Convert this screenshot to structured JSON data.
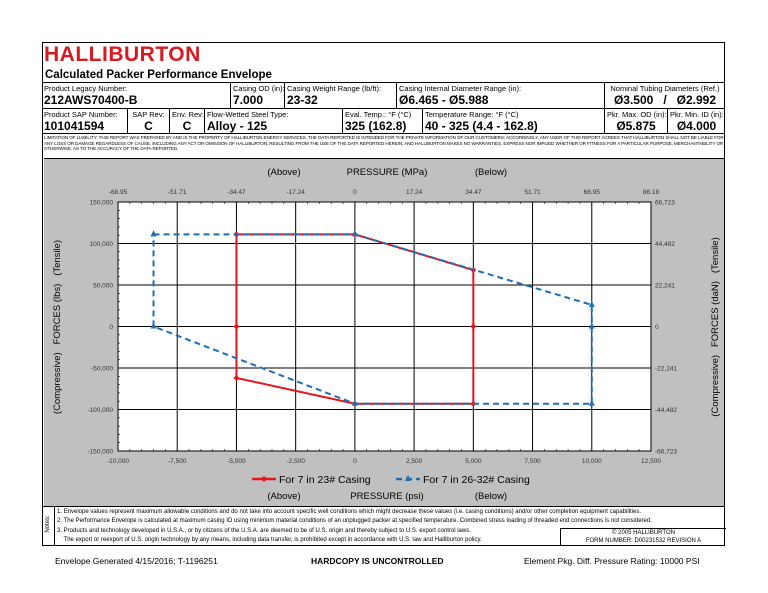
{
  "header": {
    "brand": "HALLIBURTON",
    "title": "Calculated Packer Performance Envelope"
  },
  "row1": {
    "legacy_label": "Product Legacy Number:",
    "legacy_value": "212AWS70400-B",
    "od_label": "Casing OD (in):",
    "od_value": "7.000",
    "weight_label": "Casing Weight Range (lb/ft):",
    "weight_value": "23-32",
    "id_label": "Casing Internal Diameter Range (in):",
    "id_value": "Ø6.465 - Ø5.988",
    "tubing_label": "Nominal Tubing Diameters (Ref.)",
    "tubing_value": "Ø3.500   /   Ø2.992"
  },
  "row2": {
    "sap_label": "Product SAP Number:",
    "sap_value": "101041594",
    "saprev_label": "SAP Rev:",
    "saprev_value": "C",
    "envrev_label": "Env. Rev:",
    "envrev_value": "C",
    "steel_label": "Flow-Wetted Steel Type:",
    "steel_value": "Alloy - 125",
    "eval_label": "Eval. Temp.: °F (°C)",
    "eval_value": "325 (162.8)",
    "temprange_label": "Temperature Range: °F (°C)",
    "temprange_value": "40 - 325 (4.4 - 162.8)",
    "maxod_label": "Pkr. Max. OD (in):",
    "maxod_value": "Ø5.875",
    "minid_label": "Pkr. Min. ID (in):",
    "minid_value": "Ø4.000"
  },
  "disclaimer": "Limitation of liability: this report was prepared by and is the property of Halliburton Energy Services. The data reported is intended for the private information of our customers; accordingly, any user of this report agrees that Halliburton shall not be liable for any loss or damage regardless of cause, including any act or omission of Halliburton, resulting from the use of the data reported herein; and Halliburton makes no warranties, express nor implied whether or fitness for a particular purpose, merchantability or otherwise, as to the accuracy of the data reported.",
  "chart_data": {
    "type": "line",
    "title_top": "PRESSURE (MPa)",
    "top_above": "(Above)",
    "top_below": "(Below)",
    "xlabel": "PRESSURE (psi)",
    "bottom_above": "(Above)",
    "bottom_below": "(Below)",
    "ylabel_left": "(Compressive)   FORCES (lbs)   (Tensile)",
    "ylabel_right": "(Compressive)   FORCES (daN)   (Tensile)",
    "xlim": [
      -10000,
      12500
    ],
    "ylim": [
      -150000,
      150000
    ],
    "x_ticks": [
      -10000,
      -7500,
      -5000,
      -2500,
      0,
      2500,
      5000,
      7500,
      10000,
      12500
    ],
    "x_tick_labels": [
      "-10,000",
      "-7,500",
      "-5,000",
      "-2,500",
      "0",
      "2,500",
      "5,000",
      "7,500",
      "10,000",
      "12,500"
    ],
    "x_top_tick_labels": [
      "-68.95",
      "-51.71",
      "-34.47",
      "-17.24",
      "0",
      "17.24",
      "34.47",
      "51.71",
      "68.95",
      "86.18"
    ],
    "y_ticks": [
      150000,
      100000,
      50000,
      0,
      -50000,
      -100000,
      -150000
    ],
    "y_tick_labels": [
      "150,000",
      "100,000",
      "50,000",
      "0",
      "-50,000",
      "-100,000",
      "-150,000"
    ],
    "y_right_tick_labels": [
      "66,723",
      "44,482",
      "22,241",
      "0",
      "-22,241",
      "-44,482",
      "-66,723"
    ],
    "grid": true,
    "legend_position": "bottom",
    "series": [
      {
        "name": "For 7 in 23# Casing",
        "color": "#e8141c",
        "style": "solid",
        "marker": "diamond",
        "x": [
          -5000,
          0,
          5000,
          5000,
          5000,
          0,
          -5000,
          -5000,
          -5000
        ],
        "y": [
          111000,
          111000,
          68000,
          0,
          -93000,
          -93000,
          -62000,
          0,
          111000
        ]
      },
      {
        "name": "For 7 in 26-32# Casing",
        "color": "#1f6fb4",
        "style": "dashed",
        "marker": "triangle",
        "x": [
          -8500,
          0,
          10000,
          10000,
          10000,
          0,
          -8500,
          -8500
        ],
        "y": [
          111000,
          111000,
          26000,
          0,
          -93000,
          -93000,
          0,
          111000
        ]
      }
    ]
  },
  "notes": {
    "tag": "Notes:",
    "items": [
      "1. Envelope values represent maximum allowable conditions and do not take into account specific well conditions which might decrease these values (i.e. casing conditions) and/or other completion equipment capabilities.",
      "2. The Performance Envelope is calculated at maximum casing ID using minimum material conditions of an unplugged packer at specified temperature.  Combined stress loading of threaded end connections is not considered.",
      "3. Products and technology developed in U.S.A., or by citizens of the U.S.A. are deemed to be of U.S. origin and thereby subject to U.S. export control laws.",
      "    The export or reexport of U.S. origin technology by any means, including data transfer, is prohibited except in accordance with U.S. law and Halliburton policy."
    ],
    "copyright": "© 2005 HALLIBURTON",
    "form_number": "FORM NUMBER: D00231532 REVISION A"
  },
  "footer": {
    "generated": "Envelope Generated 4/15/2016; T-1196251",
    "uncontrolled": "HARDCOPY IS UNCONTROLLED",
    "rating": "Element Pkg. Diff. Pressure Rating: 10000 PSI"
  }
}
